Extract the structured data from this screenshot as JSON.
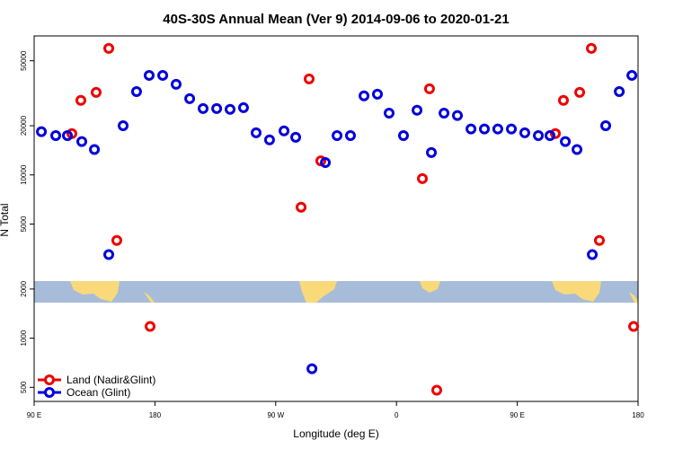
{
  "chart_data": {
    "type": "scatter",
    "title": "40S-30S Annual Mean (Ver 9)   2014-09-06 to 2020-01-21",
    "x_label": "Longitude (deg E)",
    "y_label": "N Total",
    "log_y": true,
    "legend": "bottom-left",
    "xlim": [
      90,
      540
    ],
    "xticks": [
      {
        "value": 90,
        "label": "90 E"
      },
      180,
      {
        "value": 270,
        "label": "90 W"
      },
      {
        "value": 360,
        "label": "0"
      },
      {
        "value": 450,
        "label": "90 E"
      },
      {
        "value": 540,
        "label": "180"
      }
    ],
    "ylim": [
      410,
      71000
    ],
    "yticks": [
      500,
      1000,
      2000,
      5000,
      10000,
      20000,
      50000
    ],
    "series": [
      {
        "name": "Land (Nadir&Glint)",
        "color": "#ee0000",
        "x": [
          118.1,
          124.8,
          136.2,
          145.6,
          151.6,
          176.4,
          288.9,
          294.9,
          303.6,
          379.3,
          384.6,
          390,
          478.4,
          484.4,
          496.5,
          505.2,
          511.2,
          536.7
        ],
        "values": [
          17900,
          28600,
          32000,
          59600,
          3970,
          1180,
          6340,
          38700,
          12200,
          9500,
          33700,
          480,
          17900,
          28600,
          32000,
          59600,
          3970,
          1180
        ]
      },
      {
        "name": "Ocean (Glint)",
        "color": "#0000dd",
        "x": [
          95.4,
          106.1,
          114.8,
          125.5,
          134.9,
          145.6,
          156.3,
          166.3,
          175.7,
          185.8,
          195.8,
          205.9,
          215.9,
          226,
          236,
          246,
          255.4,
          265.4,
          276.2,
          284.9,
          297,
          307,
          315.7,
          325.7,
          335.8,
          345.8,
          354.5,
          365.2,
          375.3,
          386,
          395.4,
          405.4,
          415.5,
          425.5,
          435.5,
          445.6,
          455.6,
          465.7,
          474.4,
          485.8,
          494.5,
          505.9,
          515.9,
          526,
          535.4
        ],
        "values": [
          18400,
          17400,
          17400,
          16000,
          14300,
          3250,
          20000,
          32400,
          40700,
          40700,
          35900,
          29300,
          25500,
          25500,
          25200,
          25800,
          18100,
          16400,
          18600,
          17000,
          650,
          11900,
          17400,
          17400,
          30500,
          31200,
          23900,
          17400,
          24900,
          13700,
          23900,
          23100,
          19100,
          19100,
          19100,
          19100,
          18100,
          17400,
          17400,
          16000,
          14300,
          3250,
          20000,
          32400,
          40700
        ]
      }
    ]
  }
}
